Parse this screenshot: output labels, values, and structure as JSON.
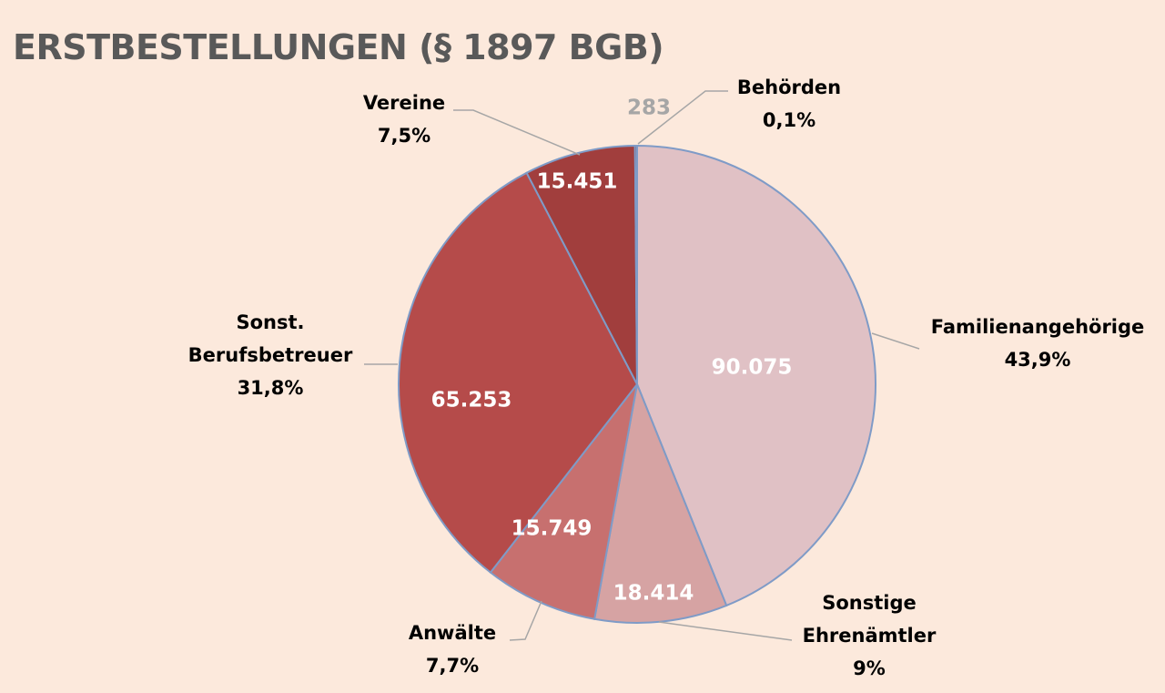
{
  "chart_data": {
    "type": "pie",
    "title": "ERSTBESTELLUNGEN (§ 1897 BGB)",
    "slices": [
      {
        "label": "Familienangehörige",
        "value": 90075,
        "value_label": "90.075",
        "percent_label": "43,9%",
        "color": "#E0C1C5",
        "value_text_color": "#FFFFFF"
      },
      {
        "label": "Sonstige Ehrenämtler",
        "label_lines": [
          "Sonstige",
          "Ehrenämtler"
        ],
        "value": 18414,
        "value_label": "18.414",
        "percent_label": "9%",
        "color": "#D6A3A3",
        "value_text_color": "#FFFFFF"
      },
      {
        "label": "Anwälte",
        "value": 15749,
        "value_label": "15.749",
        "percent_label": "7,7%",
        "color": "#C7706F",
        "value_text_color": "#FFFFFF"
      },
      {
        "label": "Sonst. Berufsbetreuer",
        "label_lines": [
          "Sonst.",
          "Berufsbetreuer"
        ],
        "value": 65253,
        "value_label": "65.253",
        "percent_label": "31,8%",
        "color": "#B54B4A",
        "value_text_color": "#FFFFFF"
      },
      {
        "label": "Vereine",
        "value": 15451,
        "value_label": "15.451",
        "percent_label": "7,5%",
        "color": "#A13E3D",
        "value_text_color": "#FFFFFF"
      },
      {
        "label": "Behörden",
        "value": 283,
        "value_label": "283",
        "percent_label": "0,1%",
        "color": "#8E2F2E",
        "value_text_color": "#A6A6A6"
      }
    ],
    "outline_color": "#7F9BC7",
    "leader_line_color": "#A6A6A6"
  }
}
